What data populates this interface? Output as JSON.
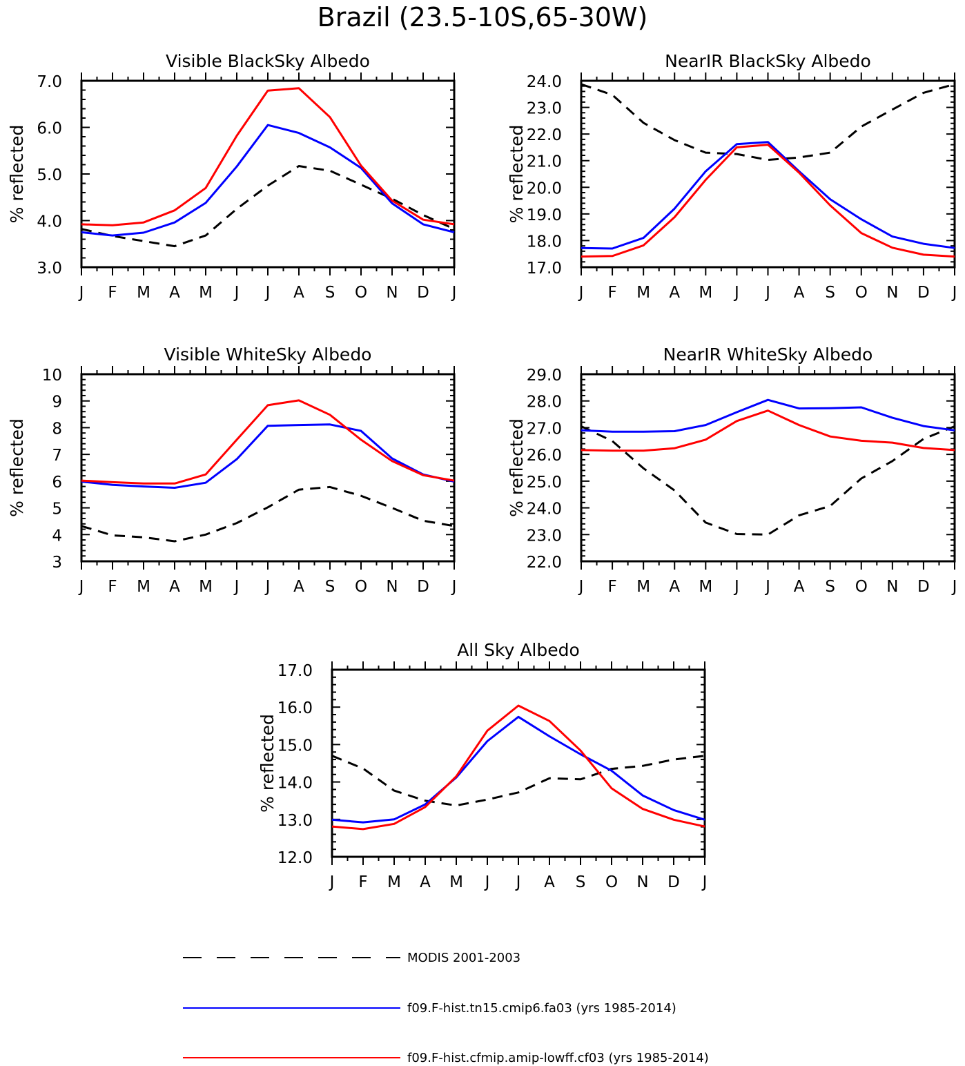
{
  "title": "Brazil (23.5-10S,65-30W)",
  "legend": [
    {
      "name": "MODIS 2001-2003",
      "color": "#000000",
      "dash": "dashed"
    },
    {
      "name": "f09.F-hist.tn15.cmip6.fa03 (yrs 1985-2014)",
      "color": "#0000ff",
      "dash": "solid"
    },
    {
      "name": "f09.F-hist.cfmip.amip-lowff.cf03 (yrs 1985-2014)",
      "color": "#ff0000",
      "dash": "solid"
    }
  ],
  "chart_data": [
    {
      "type": "line",
      "title": "Visible BlackSky Albedo",
      "ylabel": "% reflected",
      "xlabel": "",
      "x": [
        "J",
        "F",
        "M",
        "A",
        "M",
        "J",
        "J",
        "A",
        "S",
        "O",
        "N",
        "D",
        "J"
      ],
      "ylim": [
        3.0,
        7.0
      ],
      "yticks": [
        "3.0",
        "4.0",
        "5.0",
        "6.0",
        "7.0"
      ],
      "series": [
        {
          "name": "MODIS 2001-2003",
          "values": [
            3.82,
            3.67,
            3.56,
            3.45,
            3.68,
            4.25,
            4.75,
            5.17,
            5.07,
            4.77,
            4.47,
            4.12,
            3.82
          ]
        },
        {
          "name": "f09.F-hist.tn15.cmip6.fa03 (yrs 1985-2014)",
          "values": [
            3.75,
            3.68,
            3.74,
            3.96,
            4.38,
            5.16,
            6.05,
            5.88,
            5.57,
            5.13,
            4.37,
            3.92,
            3.75
          ]
        },
        {
          "name": "f09.F-hist.cfmip.amip-lowff.cf03 (yrs 1985-2014)",
          "values": [
            3.92,
            3.9,
            3.96,
            4.22,
            4.7,
            5.82,
            6.79,
            6.84,
            6.22,
            5.18,
            4.43,
            4.02,
            3.92
          ]
        }
      ]
    },
    {
      "type": "line",
      "title": "NearIR BlackSky Albedo",
      "ylabel": "% reflected",
      "xlabel": "",
      "x": [
        "J",
        "F",
        "M",
        "A",
        "M",
        "J",
        "J",
        "A",
        "S",
        "O",
        "N",
        "D",
        "J"
      ],
      "ylim": [
        17.0,
        24.0
      ],
      "yticks": [
        "17.0",
        "18.0",
        "19.0",
        "20.0",
        "21.0",
        "22.0",
        "23.0",
        "24.0"
      ],
      "series": [
        {
          "name": "MODIS 2001-2003",
          "values": [
            23.87,
            23.47,
            22.42,
            21.77,
            21.3,
            21.25,
            21.03,
            21.12,
            21.3,
            22.28,
            22.92,
            23.55,
            23.87
          ]
        },
        {
          "name": "f09.F-hist.tn15.cmip6.fa03 (yrs 1985-2014)",
          "values": [
            17.72,
            17.7,
            18.1,
            19.2,
            20.6,
            21.62,
            21.7,
            20.6,
            19.55,
            18.8,
            18.15,
            17.88,
            17.72
          ]
        },
        {
          "name": "f09.F-hist.cfmip.amip-lowff.cf03 (yrs 1985-2014)",
          "values": [
            17.4,
            17.42,
            17.82,
            18.88,
            20.28,
            21.5,
            21.6,
            20.55,
            19.32,
            18.28,
            17.73,
            17.47,
            17.4
          ]
        }
      ]
    },
    {
      "type": "line",
      "title": "Visible WhiteSky Albedo",
      "ylabel": "% reflected",
      "xlabel": "",
      "x": [
        "J",
        "F",
        "M",
        "A",
        "M",
        "J",
        "J",
        "A",
        "S",
        "O",
        "N",
        "D",
        "J"
      ],
      "ylim": [
        3,
        10
      ],
      "yticks": [
        "3",
        "4",
        "5",
        "6",
        "7",
        "8",
        "9",
        "10"
      ],
      "series": [
        {
          "name": "MODIS 2001-2003",
          "values": [
            4.32,
            3.97,
            3.9,
            3.75,
            4.0,
            4.43,
            5.02,
            5.68,
            5.78,
            5.45,
            5.0,
            4.52,
            4.32
          ]
        },
        {
          "name": "f09.F-hist.tn15.cmip6.fa03 (yrs 1985-2014)",
          "values": [
            5.98,
            5.86,
            5.8,
            5.75,
            5.94,
            6.82,
            8.07,
            8.1,
            8.12,
            7.88,
            6.85,
            6.25,
            5.98
          ]
        },
        {
          "name": "f09.F-hist.cfmip.amip-lowff.cf03 (yrs 1985-2014)",
          "values": [
            6.02,
            5.96,
            5.91,
            5.91,
            6.25,
            7.55,
            8.84,
            9.02,
            8.48,
            7.55,
            6.75,
            6.22,
            6.02
          ]
        }
      ]
    },
    {
      "type": "line",
      "title": "NearIR WhiteSky Albedo",
      "ylabel": "% reflected",
      "xlabel": "",
      "x": [
        "J",
        "F",
        "M",
        "A",
        "M",
        "J",
        "J",
        "A",
        "S",
        "O",
        "N",
        "D",
        "J"
      ],
      "ylim": [
        22.0,
        29.0
      ],
      "yticks": [
        "22.0",
        "23.0",
        "24.0",
        "25.0",
        "26.0",
        "27.0",
        "28.0",
        "29.0"
      ],
      "series": [
        {
          "name": "MODIS 2001-2003",
          "values": [
            27.05,
            26.5,
            25.48,
            24.65,
            23.45,
            23.02,
            23.0,
            23.72,
            24.07,
            25.1,
            25.75,
            26.58,
            27.05
          ]
        },
        {
          "name": "f09.F-hist.tn15.cmip6.fa03 (yrs 1985-2014)",
          "values": [
            26.9,
            26.85,
            26.85,
            26.87,
            27.1,
            27.58,
            28.04,
            27.72,
            27.73,
            27.76,
            27.37,
            27.06,
            26.9
          ]
        },
        {
          "name": "f09.F-hist.cfmip.amip-lowff.cf03 (yrs 1985-2014)",
          "values": [
            26.16,
            26.14,
            26.14,
            26.23,
            26.55,
            27.25,
            27.64,
            27.1,
            26.67,
            26.51,
            26.44,
            26.24,
            26.16
          ]
        }
      ]
    },
    {
      "type": "line",
      "title": "All Sky Albedo",
      "ylabel": "% reflected",
      "xlabel": "",
      "x": [
        "J",
        "F",
        "M",
        "A",
        "M",
        "J",
        "J",
        "A",
        "S",
        "O",
        "N",
        "D",
        "J"
      ],
      "ylim": [
        12.0,
        17.0
      ],
      "yticks": [
        "12.0",
        "13.0",
        "14.0",
        "15.0",
        "16.0",
        "17.0"
      ],
      "series": [
        {
          "name": "MODIS 2001-2003",
          "values": [
            14.7,
            14.36,
            13.77,
            13.5,
            13.37,
            13.53,
            13.72,
            14.1,
            14.07,
            14.35,
            14.43,
            14.6,
            14.7
          ]
        },
        {
          "name": "f09.F-hist.tn15.cmip6.fa03 (yrs 1985-2014)",
          "values": [
            12.99,
            12.92,
            13.0,
            13.4,
            14.12,
            15.09,
            15.74,
            15.22,
            14.74,
            14.3,
            13.64,
            13.25,
            12.99
          ]
        },
        {
          "name": "f09.F-hist.cfmip.amip-lowff.cf03 (yrs 1985-2014)",
          "values": [
            12.81,
            12.74,
            12.88,
            13.33,
            14.15,
            15.37,
            16.04,
            15.63,
            14.84,
            13.83,
            13.28,
            12.99,
            12.81
          ]
        }
      ]
    }
  ]
}
